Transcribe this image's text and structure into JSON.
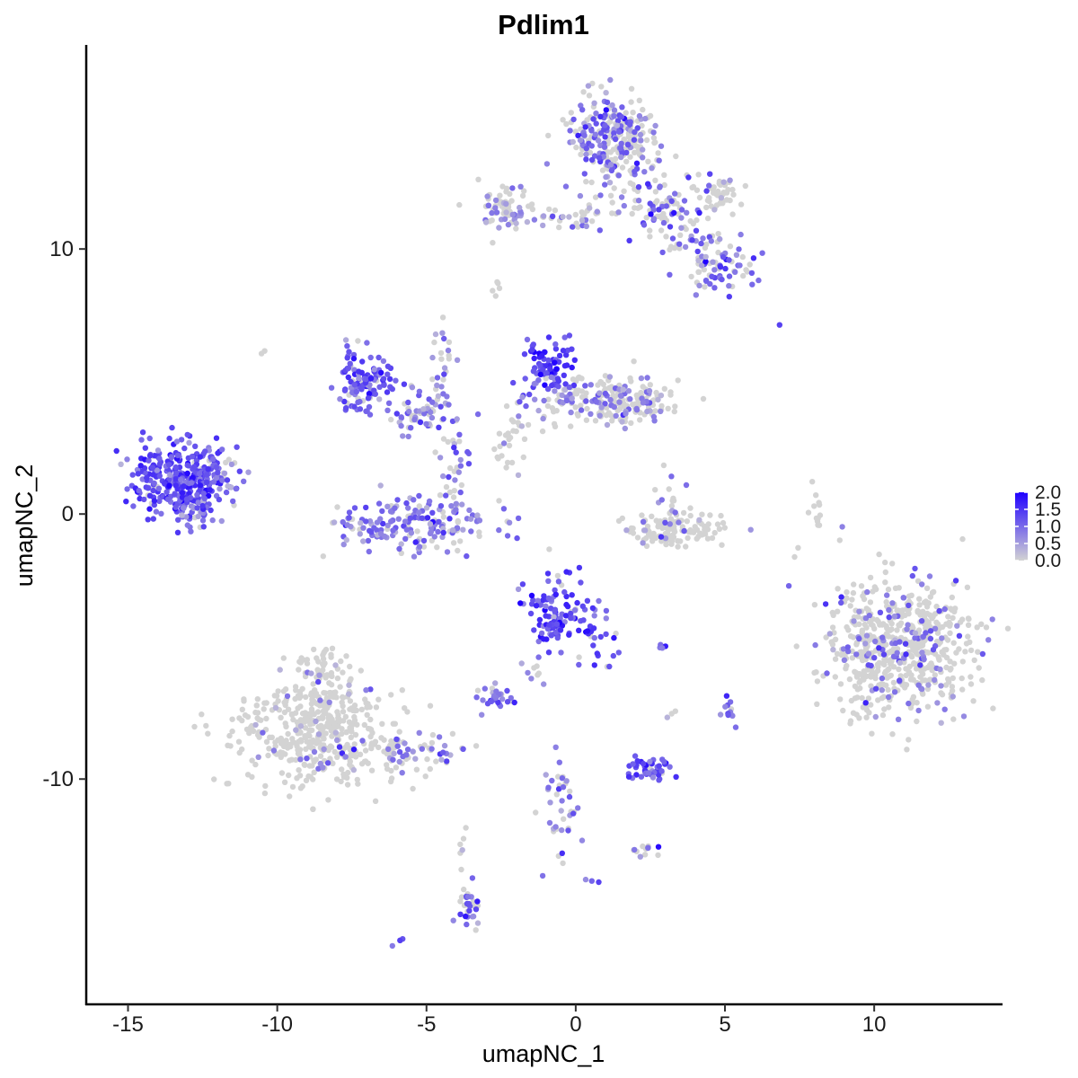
{
  "chart_data": {
    "type": "scatter",
    "title": "Pdlim1",
    "xlabel": "umapNC_1",
    "ylabel": "umapNC_2",
    "xlim": [
      -16.4,
      14.3
    ],
    "ylim": [
      -18.5,
      17.7
    ],
    "x_ticks": [
      -15,
      -10,
      -5,
      0,
      5,
      10
    ],
    "y_ticks": [
      -10,
      0,
      10
    ],
    "grid": false,
    "colorbar": {
      "title": "",
      "min": 0,
      "max": 2.0,
      "ticks": [
        2.0,
        1.5,
        1.0,
        0.5,
        0.0
      ],
      "tick_labels": [
        "2.0",
        "1.5",
        "1.0",
        "0.5",
        "0.0"
      ],
      "low_color": "#d3d3d3",
      "high_color": "#1f00ff",
      "placement": "right"
    },
    "clusters": [
      {
        "cx": -13.3,
        "cy": 1.2,
        "sx": 0.8,
        "sy": 0.7,
        "n": 320,
        "expr_frac": 0.95,
        "expr_mean": 1.3
      },
      {
        "cx": -12.0,
        "cy": 1.8,
        "sx": 0.35,
        "sy": 0.5,
        "n": 40,
        "expr_frac": 0.85,
        "expr_mean": 1.0
      },
      {
        "cx": -12.8,
        "cy": 0.1,
        "sx": 0.4,
        "sy": 0.3,
        "n": 30,
        "expr_frac": 0.7,
        "expr_mean": 0.9
      },
      {
        "cx": -7.0,
        "cy": 5.0,
        "sx": 0.5,
        "sy": 0.6,
        "n": 120,
        "expr_frac": 0.9,
        "expr_mean": 1.1
      },
      {
        "cx": -5.2,
        "cy": 3.8,
        "sx": 0.6,
        "sy": 0.4,
        "n": 60,
        "expr_frac": 0.7,
        "expr_mean": 0.9
      },
      {
        "cx": -5.4,
        "cy": -0.4,
        "sx": 1.4,
        "sy": 0.55,
        "n": 170,
        "expr_frac": 0.75,
        "expr_mean": 0.9
      },
      {
        "cx": -4.2,
        "cy": 1.6,
        "sx": 0.35,
        "sy": 1.0,
        "n": 40,
        "expr_frac": 0.6,
        "expr_mean": 0.9
      },
      {
        "cx": -4.5,
        "cy": 5.8,
        "sx": 0.2,
        "sy": 0.9,
        "n": 25,
        "expr_frac": 0.6,
        "expr_mean": 0.8
      },
      {
        "cx": -1.0,
        "cy": 5.6,
        "sx": 0.4,
        "sy": 0.5,
        "n": 80,
        "expr_frac": 0.95,
        "expr_mean": 1.4
      },
      {
        "cx": 0.5,
        "cy": 4.3,
        "sx": 1.2,
        "sy": 0.45,
        "n": 140,
        "expr_frac": 0.45,
        "expr_mean": 0.9
      },
      {
        "cx": 1.8,
        "cy": 4.2,
        "sx": 0.6,
        "sy": 0.4,
        "n": 80,
        "expr_frac": 0.3,
        "expr_mean": 0.7
      },
      {
        "cx": -2.2,
        "cy": 3.0,
        "sx": 0.35,
        "sy": 0.7,
        "n": 30,
        "expr_frac": 0.2,
        "expr_mean": 0.6
      },
      {
        "cx": 1.2,
        "cy": 14.0,
        "sx": 0.7,
        "sy": 0.9,
        "n": 280,
        "expr_frac": 0.5,
        "expr_mean": 1.0
      },
      {
        "cx": 2.8,
        "cy": 11.7,
        "sx": 0.9,
        "sy": 0.6,
        "n": 90,
        "expr_frac": 0.4,
        "expr_mean": 1.0
      },
      {
        "cx": 4.7,
        "cy": 12.0,
        "sx": 0.35,
        "sy": 0.35,
        "n": 40,
        "expr_frac": 0.1,
        "expr_mean": 0.6
      },
      {
        "cx": 4.8,
        "cy": 9.4,
        "sx": 0.6,
        "sy": 0.6,
        "n": 70,
        "expr_frac": 0.55,
        "expr_mean": 1.0
      },
      {
        "cx": 3.9,
        "cy": 10.2,
        "sx": 0.5,
        "sy": 0.5,
        "n": 30,
        "expr_frac": 0.4,
        "expr_mean": 0.9
      },
      {
        "cx": -2.5,
        "cy": 11.6,
        "sx": 0.5,
        "sy": 0.4,
        "n": 60,
        "expr_frac": 0.35,
        "expr_mean": 0.8
      },
      {
        "cx": -0.5,
        "cy": 11.1,
        "sx": 1.1,
        "sy": 0.25,
        "n": 40,
        "expr_frac": 0.4,
        "expr_mean": 0.8
      },
      {
        "cx": -2.7,
        "cy": 8.6,
        "sx": 0.15,
        "sy": 0.15,
        "n": 5,
        "expr_frac": 0.2,
        "expr_mean": 0.5
      },
      {
        "cx": 3.4,
        "cy": -0.6,
        "sx": 0.9,
        "sy": 0.3,
        "n": 110,
        "expr_frac": 0.1,
        "expr_mean": 0.6
      },
      {
        "cx": 3.2,
        "cy": 0.6,
        "sx": 0.3,
        "sy": 0.5,
        "n": 20,
        "expr_frac": 0.5,
        "expr_mean": 0.8
      },
      {
        "cx": 8.0,
        "cy": 0.2,
        "sx": 0.15,
        "sy": 0.5,
        "n": 12,
        "expr_frac": 0.0,
        "expr_mean": 0.0
      },
      {
        "cx": 10.8,
        "cy": -5.0,
        "sx": 1.3,
        "sy": 1.3,
        "n": 620,
        "expr_frac": 0.2,
        "expr_mean": 0.9
      },
      {
        "cx": -8.8,
        "cy": -8.2,
        "sx": 1.3,
        "sy": 1.0,
        "n": 420,
        "expr_frac": 0.04,
        "expr_mean": 0.6
      },
      {
        "cx": -8.6,
        "cy": -6.0,
        "sx": 0.5,
        "sy": 0.6,
        "n": 60,
        "expr_frac": 0.1,
        "expr_mean": 0.7
      },
      {
        "cx": -6.0,
        "cy": -9.0,
        "sx": 1.3,
        "sy": 0.35,
        "n": 90,
        "expr_frac": 0.45,
        "expr_mean": 0.9
      },
      {
        "cx": -0.5,
        "cy": -3.7,
        "sx": 0.6,
        "sy": 0.7,
        "n": 110,
        "expr_frac": 0.9,
        "expr_mean": 1.3
      },
      {
        "cx": 0.8,
        "cy": -4.9,
        "sx": 0.35,
        "sy": 0.5,
        "n": 20,
        "expr_frac": 0.8,
        "expr_mean": 1.2
      },
      {
        "cx": -2.7,
        "cy": -6.9,
        "sx": 0.3,
        "sy": 0.25,
        "n": 30,
        "expr_frac": 0.85,
        "expr_mean": 1.0
      },
      {
        "cx": -1.2,
        "cy": -5.8,
        "sx": 0.3,
        "sy": 0.35,
        "n": 10,
        "expr_frac": 0.6,
        "expr_mean": 0.8
      },
      {
        "cx": 2.5,
        "cy": -9.6,
        "sx": 0.4,
        "sy": 0.2,
        "n": 50,
        "expr_frac": 0.9,
        "expr_mean": 1.2
      },
      {
        "cx": -0.4,
        "cy": -11.0,
        "sx": 0.3,
        "sy": 0.9,
        "n": 40,
        "expr_frac": 0.6,
        "expr_mean": 0.9
      },
      {
        "cx": 2.3,
        "cy": -12.7,
        "sx": 0.3,
        "sy": 0.2,
        "n": 12,
        "expr_frac": 0.5,
        "expr_mean": 0.8
      },
      {
        "cx": -3.5,
        "cy": -14.7,
        "sx": 0.2,
        "sy": 0.6,
        "n": 30,
        "expr_frac": 0.5,
        "expr_mean": 0.9
      },
      {
        "cx": -3.8,
        "cy": -12.8,
        "sx": 0.1,
        "sy": 0.6,
        "n": 6,
        "expr_frac": 0.4,
        "expr_mean": 0.7
      },
      {
        "cx": 5.1,
        "cy": -7.5,
        "sx": 0.15,
        "sy": 0.35,
        "n": 12,
        "expr_frac": 0.8,
        "expr_mean": 0.9
      },
      {
        "cx": 2.9,
        "cy": -5.0,
        "sx": 0.1,
        "sy": 0.05,
        "n": 4,
        "expr_frac": 0.9,
        "expr_mean": 1.2
      },
      {
        "cx": -6.0,
        "cy": -16.2,
        "sx": 0.1,
        "sy": 0.1,
        "n": 4,
        "expr_frac": 0.8,
        "expr_mean": 1.0
      },
      {
        "cx": 0.6,
        "cy": -13.9,
        "sx": 0.08,
        "sy": 0.08,
        "n": 3,
        "expr_frac": 0.8,
        "expr_mean": 1.0
      },
      {
        "cx": -10.5,
        "cy": 6.1,
        "sx": 0.05,
        "sy": 0.05,
        "n": 2,
        "expr_frac": 0.0,
        "expr_mean": 0.0
      },
      {
        "cx": 6.8,
        "cy": 7.1,
        "sx": 0.05,
        "sy": 0.05,
        "n": 1,
        "expr_frac": 1.0,
        "expr_mean": 1.0
      },
      {
        "cx": 3.3,
        "cy": -7.6,
        "sx": 0.1,
        "sy": 0.1,
        "n": 3,
        "expr_frac": 0.3,
        "expr_mean": 0.6
      }
    ]
  }
}
